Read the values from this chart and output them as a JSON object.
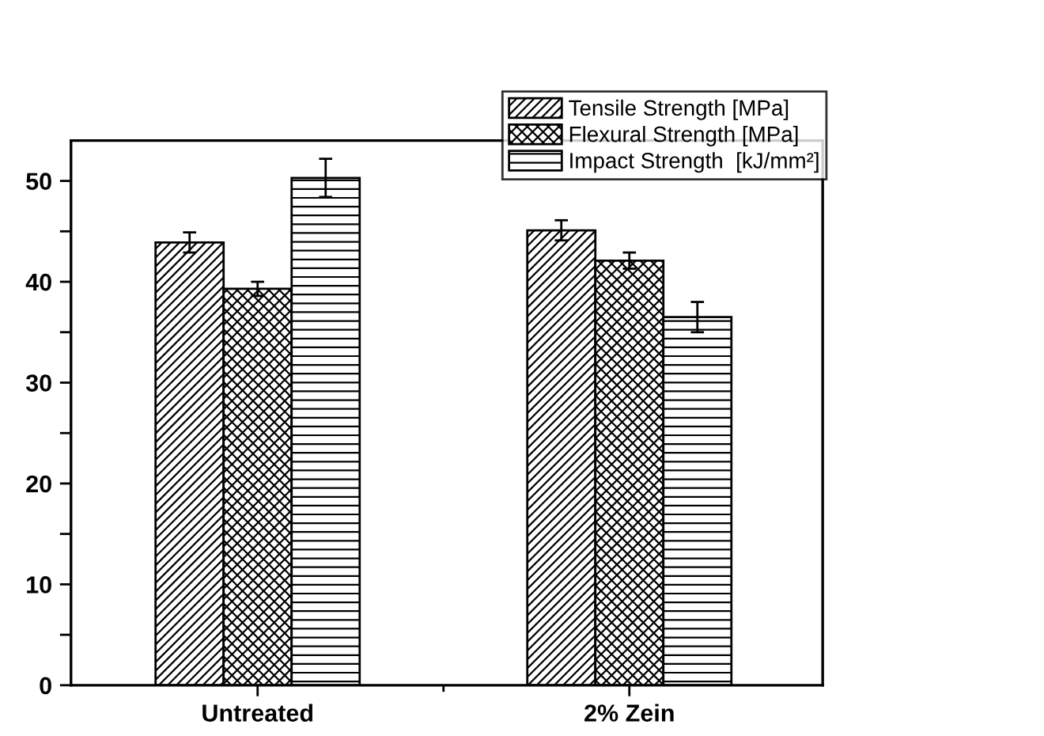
{
  "chart_data": {
    "type": "bar",
    "categories": [
      "Untreated",
      "2% Zein"
    ],
    "series": [
      {
        "name": "Tensile Strength [MPa]",
        "color": "#000000",
        "values": [
          43.9,
          45.1
        ],
        "errors": [
          1.0,
          1.0
        ]
      },
      {
        "name": "Flexural Strength [MPa]",
        "color": "#000000",
        "values": [
          39.3,
          42.1
        ],
        "errors": [
          0.7,
          0.8
        ]
      },
      {
        "name": "Impact Strength  [kJ/mm²]",
        "color": "#000000",
        "values": [
          50.3,
          36.5
        ],
        "errors": [
          1.9,
          1.5
        ]
      }
    ],
    "ylim": [
      0,
      54
    ],
    "yticks": [
      0,
      {
        "value": 5,
        "label": null
      },
      10,
      {
        "value": 15,
        "label": null
      },
      20,
      {
        "value": 25,
        "label": null
      },
      30,
      {
        "value": 35,
        "label": null
      },
      40,
      {
        "value": 45,
        "label": null
      },
      50
    ],
    "grid": false,
    "legend": "top right"
  }
}
